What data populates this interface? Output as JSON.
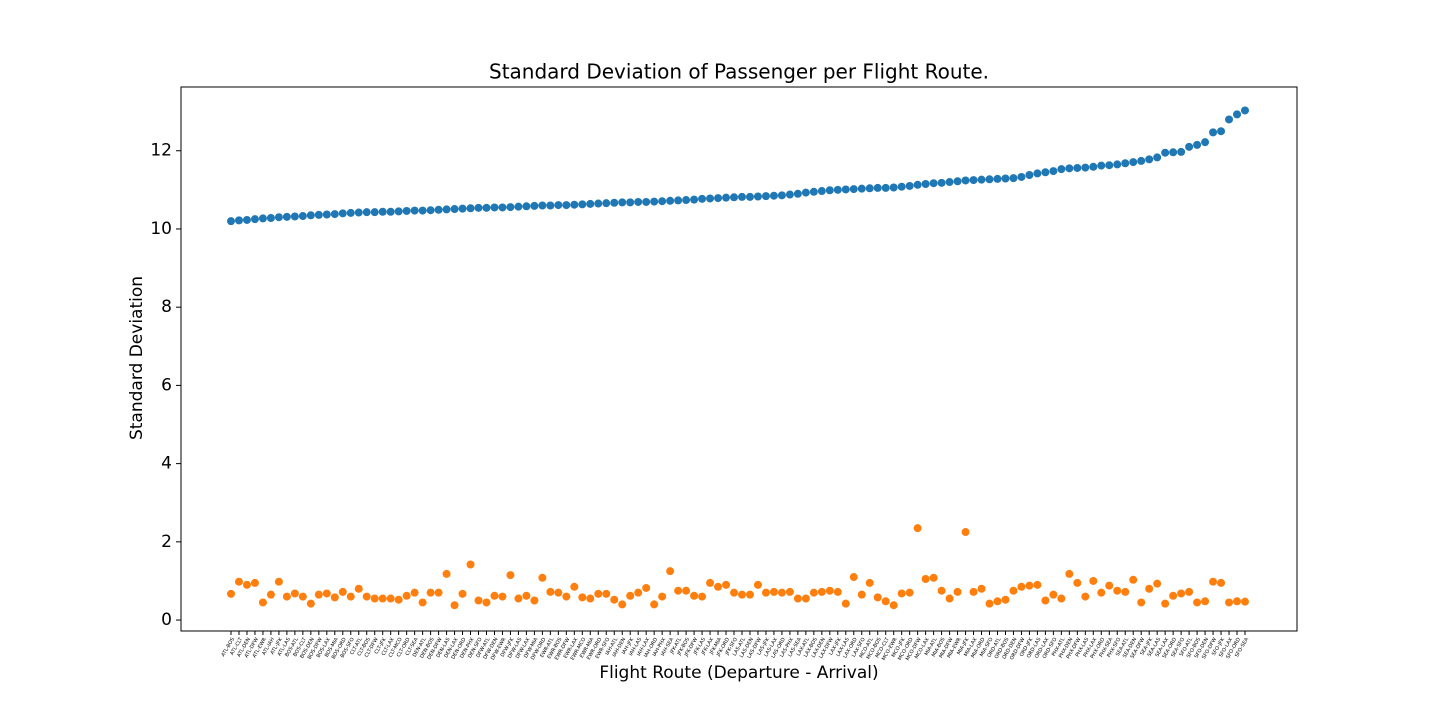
{
  "chart_data": {
    "type": "scatter",
    "title": "Standard Deviation of Passenger per Flight Route.",
    "x_label": "Flight Route (Departure - Arrival)",
    "y_label": "Standard Deviation",
    "categories": [
      "ATL-BOS",
      "ATL-CLT",
      "ATL-DEN",
      "ATL-DFW",
      "ATL-EWR",
      "ATL-IAH",
      "ATL-JFK",
      "ATL-LAS",
      "BOS-ATL",
      "BOS-CLT",
      "BOS-DEN",
      "BOS-DFW",
      "BOS-LAX",
      "BOS-MIA",
      "BOS-ORD",
      "BOS-SFO",
      "CLT-ATL",
      "CLT-BOS",
      "CLT-DFW",
      "CLT-JFK",
      "CLT-LAX",
      "CLT-MCO",
      "CLT-ORD",
      "CLT-SEA",
      "DEN-ATL",
      "DEN-BOS",
      "DEN-DFW",
      "DEN-LAS",
      "DEN-LAX",
      "DEN-ORD",
      "DEN-PHX",
      "DEN-SFO",
      "DFW-ATL",
      "DFW-DEN",
      "DFW-EWR",
      "DFW-JFK",
      "DFW-LAS",
      "DFW-LAX",
      "DFW-MIA",
      "DFW-ORD",
      "EWR-ATL",
      "EWR-BOS",
      "EWR-DFW",
      "EWR-LAX",
      "EWR-MCO",
      "EWR-MIA",
      "EWR-ORD",
      "EWR-SFO",
      "IAH-ATL",
      "IAH-DEN",
      "IAH-JFK",
      "IAH-LAS",
      "IAH-LAX",
      "IAH-ORD",
      "IAH-PHX",
      "IAH-SEA",
      "JFK-ATL",
      "JFK-BOS",
      "JFK-DFW",
      "JFK-LAS",
      "JFK-LAX",
      "JFK-MIA",
      "JFK-ORD",
      "JFK-SFO",
      "LAS-ATL",
      "LAS-DEN",
      "LAS-DFW",
      "LAS-JFK",
      "LAS-LAX",
      "LAS-ORD",
      "LAS-PHX",
      "LAS-SEA",
      "LAX-ATL",
      "LAX-BOS",
      "LAX-DEN",
      "LAX-DFW",
      "LAX-JFK",
      "LAX-LAS",
      "LAX-ORD",
      "LAX-SFO",
      "MCO-ATL",
      "MCO-BOS",
      "MCO-CLT",
      "MCO-EWR",
      "MCO-JFK",
      "MCO-ORD",
      "MCO-DFW",
      "MCO-LAX",
      "MIA-ATL",
      "MIA-BOS",
      "MIA-DFW",
      "MIA-EWR",
      "MIA-JFK",
      "MIA-LAX",
      "MIA-ORD",
      "MIA-SFO",
      "ORD-ATL",
      "ORD-BOS",
      "ORD-DEN",
      "ORD-DFW",
      "ORD-JFK",
      "ORD-LAS",
      "ORD-LAX",
      "ORD-SFO",
      "PHX-ATL",
      "PHX-DEN",
      "PHX-DFW",
      "PHX-LAS",
      "PHX-LAX",
      "PHX-ORD",
      "PHX-SEA",
      "PHX-SFO",
      "SEA-ATL",
      "SEA-DEN",
      "SEA-DFW",
      "SEA-JFK",
      "SEA-LAS",
      "SEA-LAX",
      "SEA-ORD",
      "SEA-SFO",
      "SFO-ATL",
      "SFO-BOS",
      "SFO-DEN",
      "SFO-DFW",
      "SFO-JFK",
      "SFO-LAX",
      "SFO-ORD",
      "SFO-SEA"
    ],
    "series": [
      {
        "color": "#1f77b4",
        "values": [
          10.2,
          10.22,
          10.23,
          10.25,
          10.27,
          10.28,
          10.3,
          10.31,
          10.32,
          10.33,
          10.35,
          10.36,
          10.37,
          10.38,
          10.4,
          10.41,
          10.42,
          10.43,
          10.43,
          10.44,
          10.44,
          10.45,
          10.46,
          10.47,
          10.47,
          10.48,
          10.49,
          10.5,
          10.51,
          10.52,
          10.53,
          10.54,
          10.54,
          10.55,
          10.55,
          10.56,
          10.57,
          10.58,
          10.59,
          10.6,
          10.6,
          10.61,
          10.61,
          10.62,
          10.63,
          10.64,
          10.65,
          10.66,
          10.67,
          10.68,
          10.68,
          10.69,
          10.69,
          10.7,
          10.71,
          10.72,
          10.73,
          10.74,
          10.75,
          10.77,
          10.78,
          10.79,
          10.8,
          10.81,
          10.82,
          10.82,
          10.83,
          10.84,
          10.85,
          10.86,
          10.88,
          10.9,
          10.93,
          10.95,
          10.97,
          10.99,
          11.0,
          11.01,
          11.02,
          11.03,
          11.04,
          11.05,
          11.05,
          11.06,
          11.08,
          11.1,
          11.13,
          11.15,
          11.17,
          11.18,
          11.2,
          11.22,
          11.24,
          11.25,
          11.26,
          11.27,
          11.28,
          11.29,
          11.3,
          11.33,
          11.38,
          11.42,
          11.45,
          11.48,
          11.53,
          11.55,
          11.56,
          11.57,
          11.59,
          11.62,
          11.63,
          11.65,
          11.68,
          11.71,
          11.74,
          11.78,
          11.83,
          11.95,
          11.96,
          11.97,
          12.1,
          12.15,
          12.22,
          12.47,
          12.5,
          12.8,
          12.93,
          13.03
        ]
      },
      {
        "color": "#ff7f0e",
        "values": [
          0.67,
          0.98,
          0.9,
          0.95,
          0.45,
          0.65,
          0.98,
          0.6,
          0.68,
          0.6,
          0.42,
          0.65,
          0.68,
          0.58,
          0.72,
          0.6,
          0.8,
          0.6,
          0.55,
          0.55,
          0.55,
          0.52,
          0.62,
          0.7,
          0.45,
          0.7,
          0.7,
          1.18,
          0.38,
          0.67,
          1.42,
          0.5,
          0.45,
          0.62,
          0.6,
          1.15,
          0.55,
          0.62,
          0.5,
          1.08,
          0.72,
          0.7,
          0.6,
          0.85,
          0.58,
          0.55,
          0.67,
          0.67,
          0.52,
          0.4,
          0.62,
          0.7,
          0.82,
          0.4,
          0.6,
          1.25,
          0.75,
          0.75,
          0.62,
          0.6,
          0.95,
          0.85,
          0.9,
          0.7,
          0.65,
          0.65,
          0.9,
          0.7,
          0.72,
          0.7,
          0.72,
          0.55,
          0.55,
          0.7,
          0.72,
          0.75,
          0.72,
          0.42,
          1.1,
          0.65,
          0.95,
          0.58,
          0.48,
          0.38,
          0.68,
          0.7,
          2.35,
          1.05,
          1.08,
          0.75,
          0.55,
          0.72,
          2.25,
          0.72,
          0.8,
          0.42,
          0.48,
          0.52,
          0.75,
          0.85,
          0.88,
          0.9,
          0.5,
          0.65,
          0.55,
          1.18,
          0.95,
          0.6,
          1.0,
          0.7,
          0.88,
          0.75,
          0.72,
          1.03,
          0.45,
          0.8,
          0.93,
          0.42,
          0.62,
          0.68,
          0.72,
          0.45,
          0.48,
          0.98,
          0.95,
          0.45,
          0.48,
          0.47
        ]
      }
    ],
    "ylim": [
      -0.28,
      13.63
    ],
    "yticks": [
      0,
      2,
      4,
      6,
      8,
      10,
      12
    ]
  }
}
